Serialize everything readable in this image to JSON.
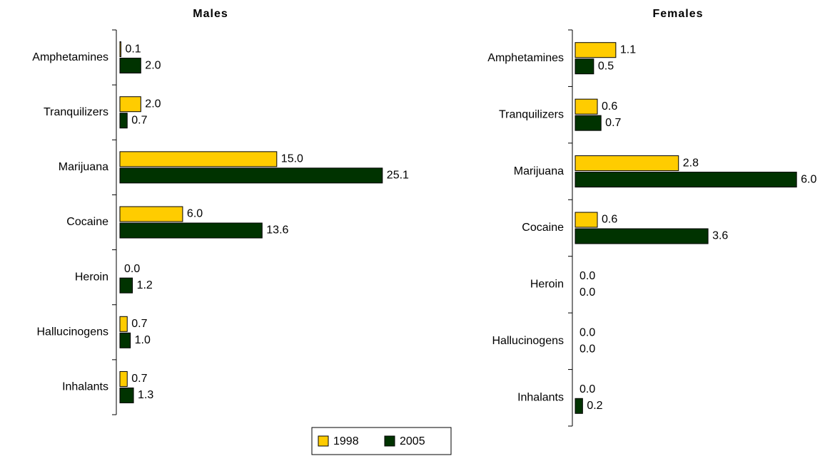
{
  "chart_data": [
    {
      "type": "bar",
      "orientation": "horizontal",
      "title": "Males",
      "categories": [
        "Amphetamines",
        "Tranquilizers",
        "Marijuana",
        "Cocaine",
        "Heroin",
        "Hallucinogens",
        "Inhalants"
      ],
      "series": [
        {
          "name": "1998",
          "color": "#ffcc00",
          "values": [
            0.1,
            2,
            15,
            6,
            0,
            0.7,
            0.7
          ],
          "value_labels": [
            "0.1",
            "2.0",
            "15.0",
            "6.0",
            "0.0",
            "0.7",
            "0.7"
          ]
        },
        {
          "name": "2005",
          "color": "#003300",
          "values": [
            2,
            0.7,
            25.1,
            13.6,
            1.2,
            1,
            1.3
          ],
          "value_labels": [
            "2.0",
            "0.7",
            "25.1",
            "13.6",
            "1.2",
            "1.0",
            "1.3"
          ]
        }
      ],
      "xlim": [
        0,
        26
      ]
    },
    {
      "type": "bar",
      "orientation": "horizontal",
      "title": "Females",
      "categories": [
        "Amphetamines",
        "Tranquilizers",
        "Marijuana",
        "Cocaine",
        "Heroin",
        "Hallucinogens",
        "Inhalants"
      ],
      "series": [
        {
          "name": "1998",
          "color": "#ffcc00",
          "values": [
            1.1,
            0.6,
            2.8,
            0.6,
            0,
            0,
            0
          ],
          "value_labels": [
            "1.1",
            "0.6",
            "2.8",
            "0.6",
            "0.0",
            "0.0",
            "0.0"
          ]
        },
        {
          "name": "2005",
          "color": "#003300",
          "values": [
            0.5,
            0.7,
            6,
            3.6,
            0,
            0,
            0.2
          ],
          "value_labels": [
            "0.5",
            "0.7",
            "6.0",
            "3.6",
            "0.0",
            "0.0",
            "0.2"
          ]
        }
      ],
      "xlim": [
        0,
        6.5
      ]
    }
  ]
}
